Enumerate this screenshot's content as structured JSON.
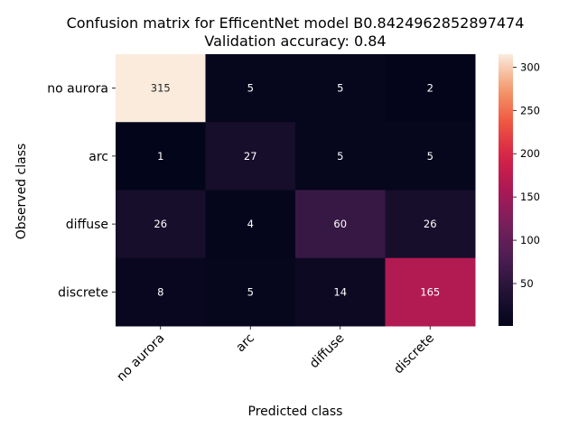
{
  "chart_data": {
    "type": "heatmap",
    "title_lines": [
      "Confusion matrix for EfficentNet model B0.8424962852897474",
      "Validation accuracy: 0.84"
    ],
    "xlabel": "Predicted class",
    "ylabel": "Observed class",
    "x_categories": [
      "no aurora",
      "arc",
      "diffuse",
      "discrete"
    ],
    "y_categories": [
      "no aurora",
      "arc",
      "diffuse",
      "discrete"
    ],
    "values": [
      [
        315,
        5,
        5,
        2
      ],
      [
        1,
        27,
        5,
        5
      ],
      [
        26,
        4,
        60,
        26
      ],
      [
        8,
        5,
        14,
        165
      ]
    ],
    "colorbar": {
      "min": 1,
      "max": 315,
      "ticks": [
        50,
        100,
        150,
        200,
        250,
        300
      ]
    },
    "colormap": "rocket"
  }
}
